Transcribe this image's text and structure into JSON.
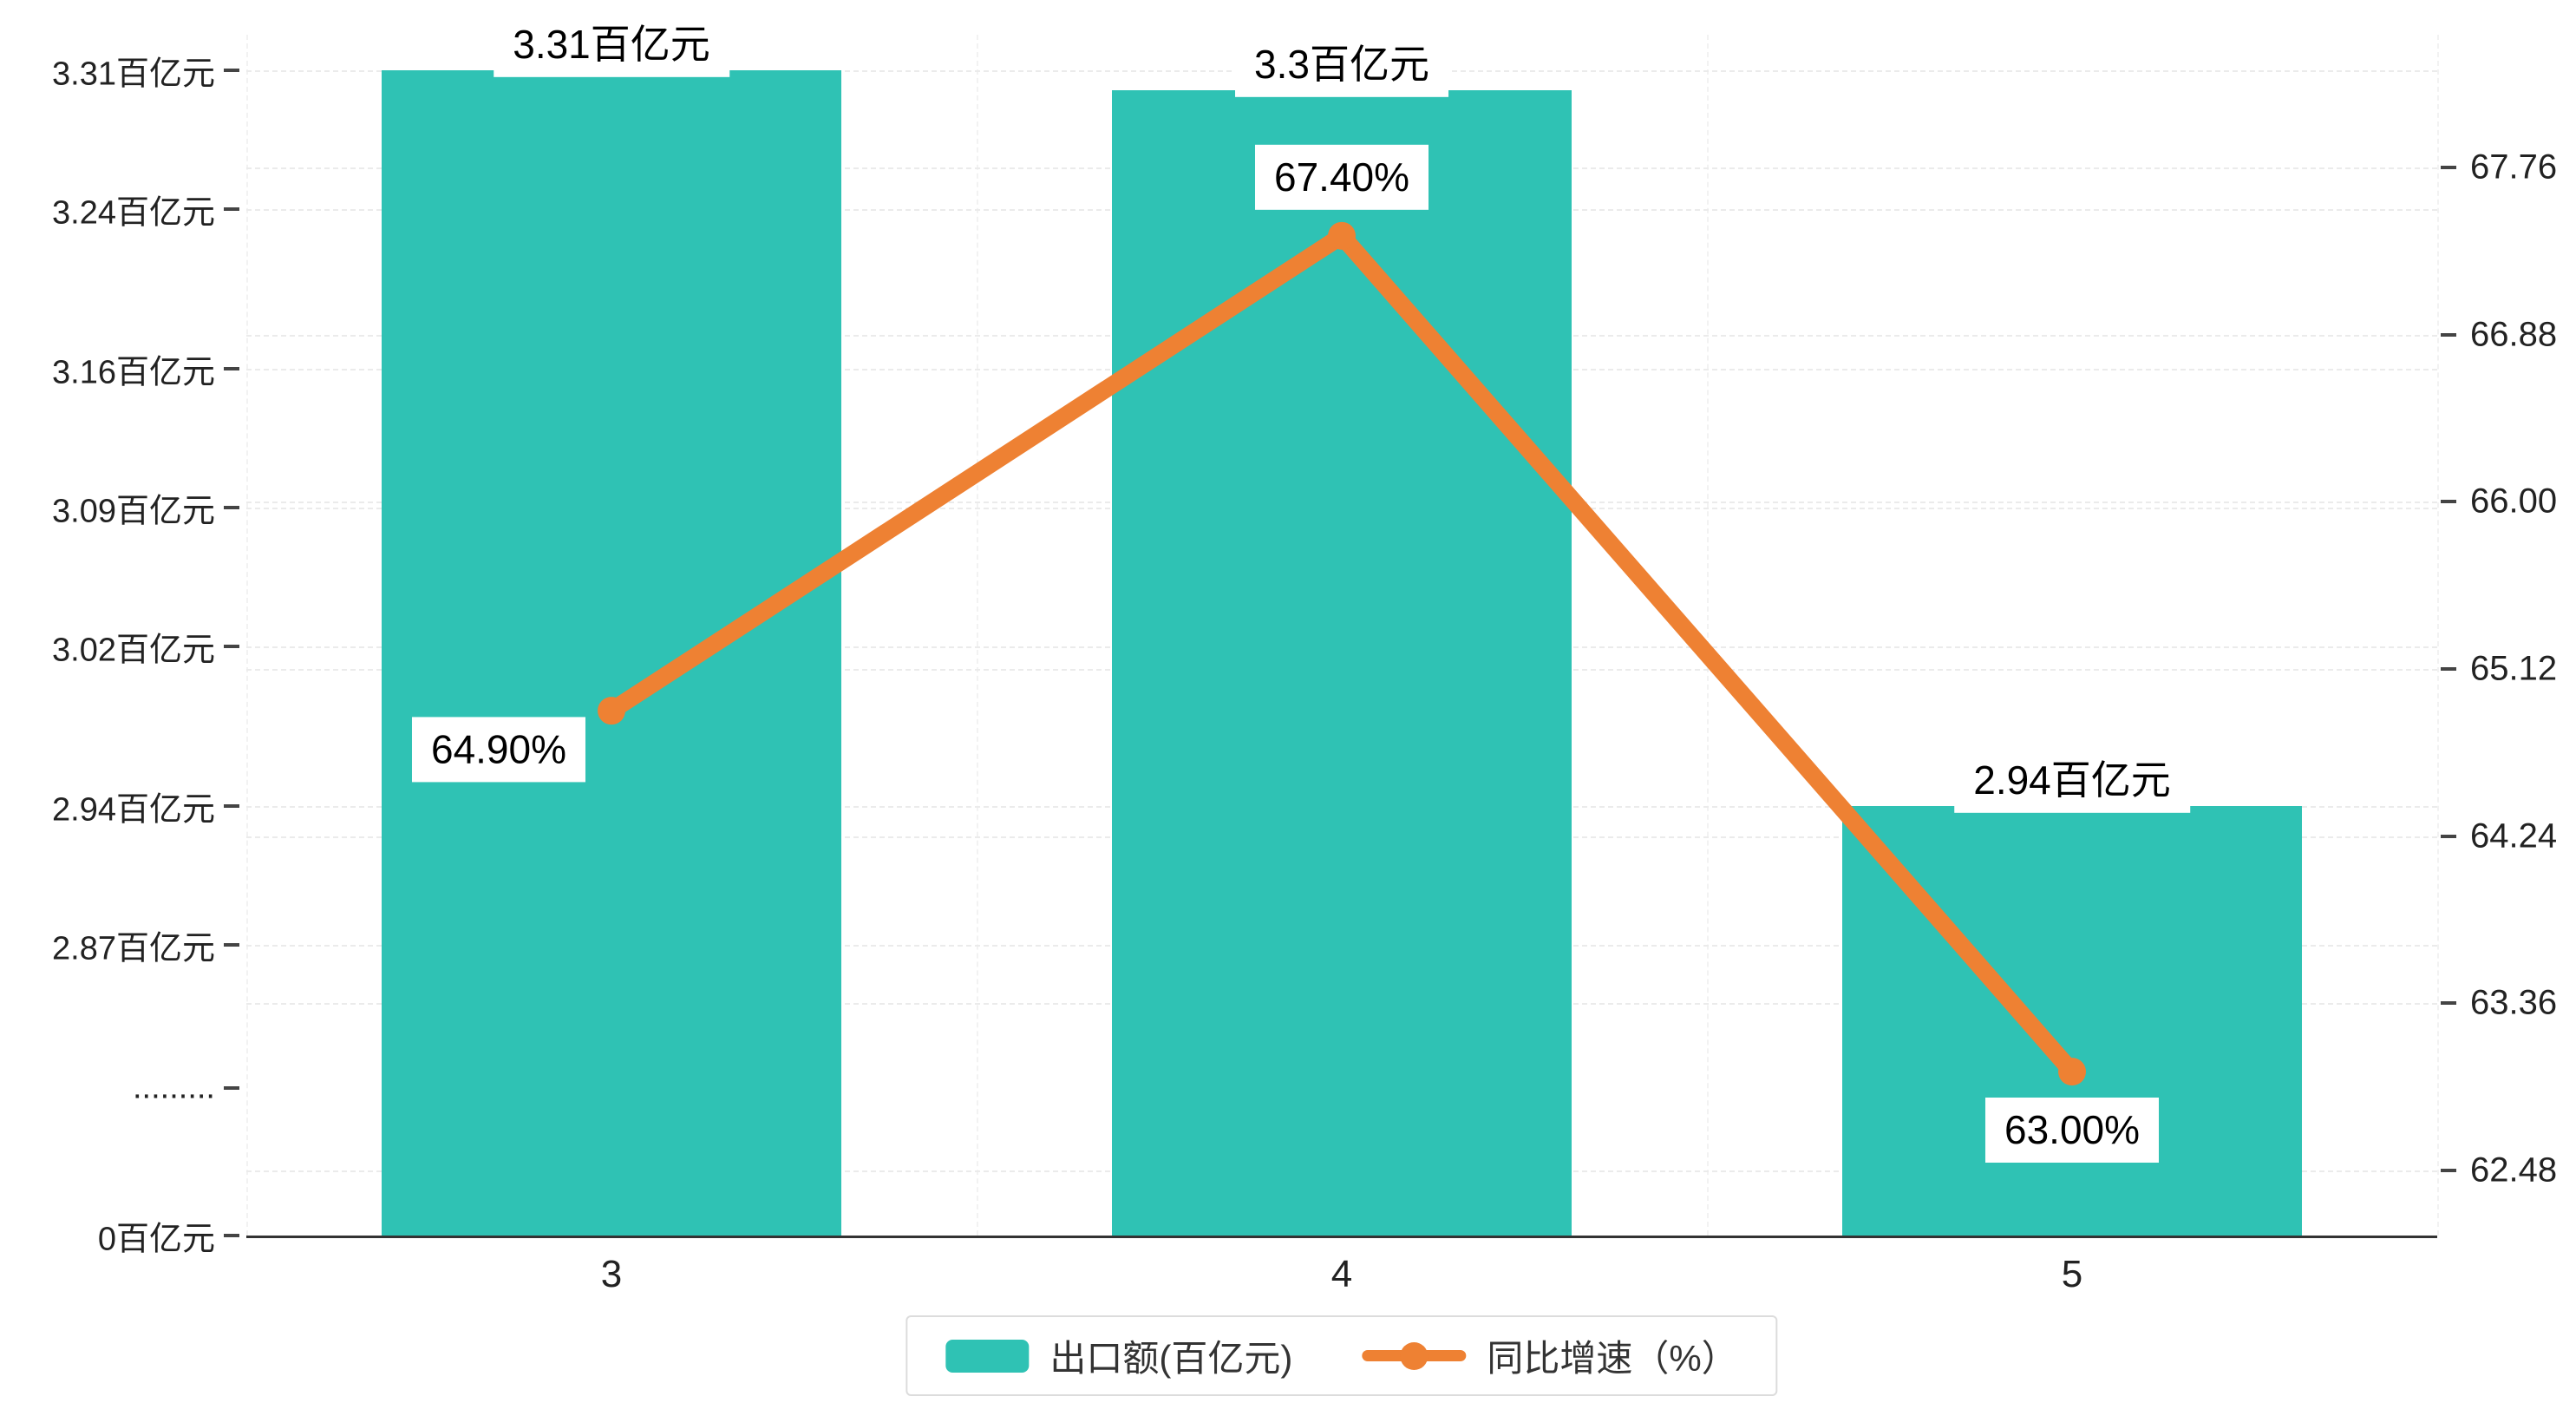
{
  "chart_data": {
    "type": "bar",
    "subtype": "bar-line-combo",
    "background": "#ffffff",
    "categories": [
      "3",
      "4",
      "5"
    ],
    "series": [
      {
        "name": "出口额(百亿元)",
        "type": "bar",
        "color": "#2fc2b4",
        "values": [
          3.31,
          3.3,
          2.94
        ],
        "labels": [
          "3.31百亿元",
          "3.3百亿元",
          "2.94百亿元"
        ],
        "axis": "left"
      },
      {
        "name": "同比增速（%）",
        "type": "line",
        "color": "#ee8133",
        "values": [
          64.9,
          67.4,
          63.0
        ],
        "labels": [
          "64.90%",
          "67.40%",
          "63.00%"
        ],
        "axis": "right"
      }
    ],
    "left_axis": {
      "has_axis_break": true,
      "ticks": [
        {
          "label": "3.31百亿元",
          "value": 3.31
        },
        {
          "label": "3.24百亿元",
          "value": 3.24
        },
        {
          "label": "3.16百亿元",
          "value": 3.16
        },
        {
          "label": "3.09百亿元",
          "value": 3.09
        },
        {
          "label": "3.02百亿元",
          "value": 3.02
        },
        {
          "label": "2.94百亿元",
          "value": 2.94
        },
        {
          "label": "2.87百亿元",
          "value": 2.87
        },
        {
          "label": ".........",
          "value": null
        },
        {
          "label": "0百亿元",
          "value": 0
        }
      ]
    },
    "right_axis": {
      "ticks": [
        {
          "label": "67.76",
          "value": 67.76
        },
        {
          "label": "66.88",
          "value": 66.88
        },
        {
          "label": "66.00",
          "value": 66.0
        },
        {
          "label": "65.12",
          "value": 65.12
        },
        {
          "label": "64.24",
          "value": 64.24
        },
        {
          "label": "63.36",
          "value": 63.36
        },
        {
          "label": "62.48",
          "value": 62.48
        }
      ]
    },
    "legend_position": "bottom-center",
    "grid": "dashed-horizontal"
  }
}
